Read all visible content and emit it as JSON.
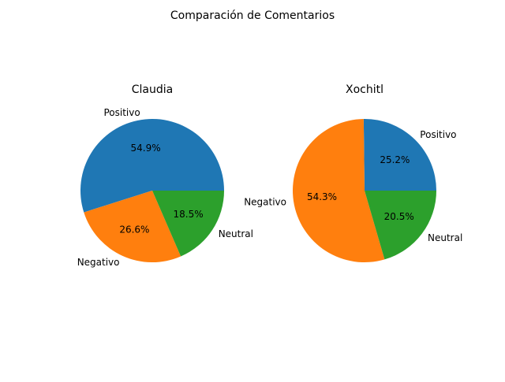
{
  "figure": {
    "suptitle": "Comparación de Comentarios"
  },
  "chart_data": [
    {
      "type": "pie",
      "title": "Claudia",
      "categories": [
        "Positivo",
        "Negativo",
        "Neutral"
      ],
      "values": [
        54.9,
        26.6,
        18.5
      ],
      "value_labels": [
        "54.9%",
        "26.6%",
        "18.5%"
      ],
      "colors": [
        "#1f77b4",
        "#ff7f0e",
        "#2ca02c"
      ],
      "start_angle_deg": 0,
      "direction": "counterclockwise"
    },
    {
      "type": "pie",
      "title": "Xochitl",
      "categories": [
        "Positivo",
        "Negativo",
        "Neutral"
      ],
      "values": [
        25.2,
        54.3,
        20.5
      ],
      "value_labels": [
        "25.2%",
        "54.3%",
        "20.5%"
      ],
      "colors": [
        "#1f77b4",
        "#ff7f0e",
        "#2ca02c"
      ],
      "start_angle_deg": 0,
      "direction": "counterclockwise"
    }
  ]
}
